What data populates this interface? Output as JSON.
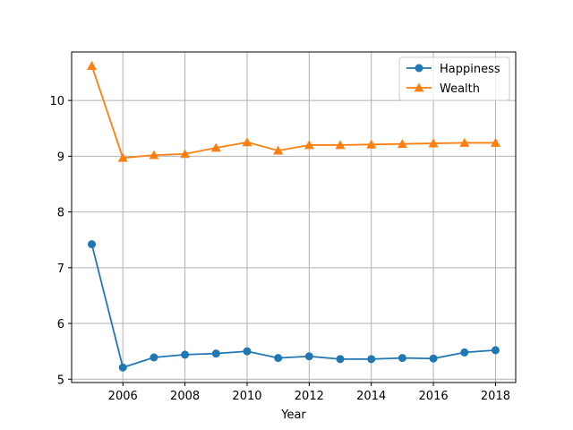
{
  "chart_data": {
    "type": "line",
    "xlabel": "Year",
    "ylabel": "",
    "title": "",
    "x": [
      2005,
      2006,
      2007,
      2008,
      2009,
      2010,
      2011,
      2012,
      2013,
      2014,
      2015,
      2016,
      2017,
      2018
    ],
    "xlim": [
      2004.35,
      2018.65
    ],
    "ylim": [
      4.94,
      10.87
    ],
    "xticks": [
      2006,
      2008,
      2010,
      2012,
      2014,
      2016,
      2018
    ],
    "yticks": [
      5,
      6,
      7,
      8,
      9,
      10
    ],
    "grid": true,
    "legend_position": "top-right",
    "series": [
      {
        "name": "Happiness",
        "color": "#1f77b4",
        "marker": "circle",
        "values": [
          7.42,
          5.21,
          5.39,
          5.44,
          5.46,
          5.5,
          5.38,
          5.41,
          5.36,
          5.36,
          5.38,
          5.37,
          5.48,
          5.52
        ]
      },
      {
        "name": "Wealth",
        "color": "#ff7f0e",
        "marker": "triangle",
        "values": [
          10.62,
          8.97,
          9.02,
          9.04,
          9.15,
          9.25,
          9.1,
          9.2,
          9.2,
          9.21,
          9.22,
          9.23,
          9.24,
          9.24
        ]
      }
    ]
  }
}
